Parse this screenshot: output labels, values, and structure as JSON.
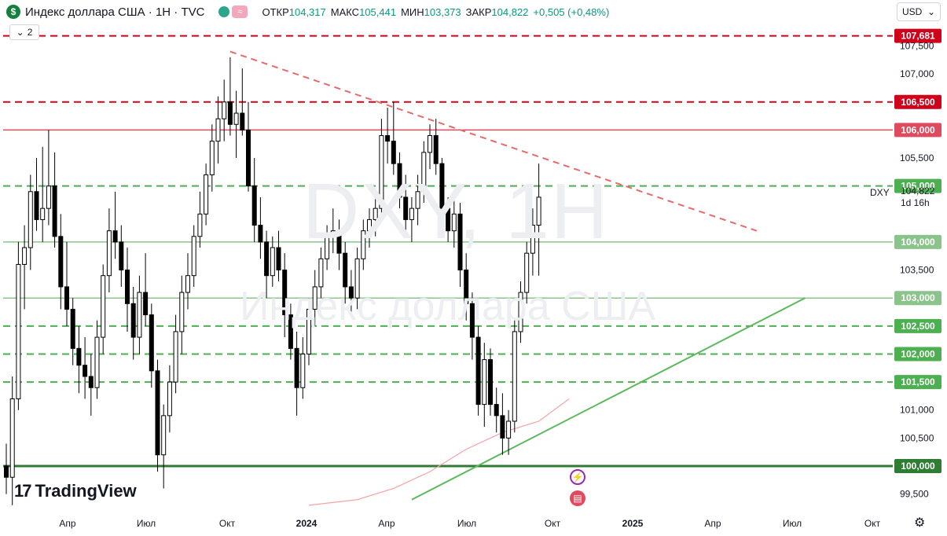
{
  "header": {
    "logo_letter": "$",
    "title": "Индекс доллара США · 1Н · TVC",
    "ohlc": [
      {
        "label": "ОТКР",
        "value": "104,317"
      },
      {
        "label": "МАКС",
        "value": "105,441"
      },
      {
        "label": "МИН",
        "value": "103,373"
      },
      {
        "label": "ЗАКР",
        "value": "104,822"
      }
    ],
    "change": "+0,505 (+0,48%)",
    "indicator_count": "2",
    "currency": "USD"
  },
  "watermark": {
    "symbol": "DXY, 1Н",
    "name": "Индекс доллара США"
  },
  "price_line": {
    "symbol": "DXY",
    "price": "104,822",
    "timer": "1d 16h"
  },
  "brand": {
    "name": "TradingView"
  },
  "colors": {
    "up": "#ffffff",
    "down": "#000000",
    "candle_border": "#000000",
    "red_line": "#e04a5f",
    "red_dashed": "#d0021b",
    "green_line": "#5cb85c",
    "green_label": "#4caf50",
    "dark_green": "#2e7d32",
    "ma_line": "#f5a3a3"
  },
  "icons": [
    "settings-gear-icon",
    "lightning-event-icon",
    "us-flag-event-icon",
    "chevron-down-icon"
  ],
  "chart_data": {
    "type": "candlestick",
    "y_axis": {
      "min": 99.2,
      "max": 107.9,
      "position": "right",
      "ticks": [
        "99,500",
        "100,500",
        "101,000",
        "103,500",
        "105,500",
        "107,000",
        "107,500"
      ]
    },
    "x_axis": {
      "labels": [
        "Апр",
        "Июл",
        "Окт",
        "2024",
        "Апр",
        "Июл",
        "Окт",
        "2025",
        "Апр",
        "Июл",
        "Окт"
      ],
      "bold": [
        "2024",
        "2025"
      ]
    },
    "candles": [
      {
        "o": 100.0,
        "h": 100.4,
        "l": 99.5,
        "c": 99.8
      },
      {
        "o": 99.8,
        "h": 101.6,
        "l": 99.3,
        "c": 101.2
      },
      {
        "o": 101.2,
        "h": 104.0,
        "l": 101.0,
        "c": 103.6
      },
      {
        "o": 103.6,
        "h": 104.3,
        "l": 102.8,
        "c": 103.9
      },
      {
        "o": 103.9,
        "h": 105.2,
        "l": 103.5,
        "c": 104.9
      },
      {
        "o": 104.9,
        "h": 105.5,
        "l": 104.2,
        "c": 104.4
      },
      {
        "o": 104.4,
        "h": 105.7,
        "l": 104.0,
        "c": 104.6
      },
      {
        "o": 104.6,
        "h": 106.0,
        "l": 104.3,
        "c": 105.0
      },
      {
        "o": 105.0,
        "h": 105.6,
        "l": 103.9,
        "c": 104.1
      },
      {
        "o": 104.1,
        "h": 104.5,
        "l": 102.8,
        "c": 103.2
      },
      {
        "o": 103.2,
        "h": 104.0,
        "l": 102.5,
        "c": 102.8
      },
      {
        "o": 102.8,
        "h": 103.0,
        "l": 101.8,
        "c": 102.1
      },
      {
        "o": 102.1,
        "h": 102.5,
        "l": 101.3,
        "c": 101.8
      },
      {
        "o": 101.8,
        "h": 102.3,
        "l": 101.2,
        "c": 101.6
      },
      {
        "o": 101.6,
        "h": 102.0,
        "l": 100.9,
        "c": 101.4
      },
      {
        "o": 101.4,
        "h": 102.6,
        "l": 101.2,
        "c": 102.3
      },
      {
        "o": 102.3,
        "h": 103.6,
        "l": 102.0,
        "c": 103.4
      },
      {
        "o": 103.4,
        "h": 104.6,
        "l": 103.1,
        "c": 104.2
      },
      {
        "o": 104.2,
        "h": 104.9,
        "l": 103.7,
        "c": 104.0
      },
      {
        "o": 104.0,
        "h": 104.3,
        "l": 103.2,
        "c": 103.5
      },
      {
        "o": 103.5,
        "h": 103.9,
        "l": 102.4,
        "c": 102.9
      },
      {
        "o": 102.9,
        "h": 103.2,
        "l": 101.9,
        "c": 102.3
      },
      {
        "o": 102.3,
        "h": 103.4,
        "l": 102.0,
        "c": 103.1
      },
      {
        "o": 103.1,
        "h": 103.8,
        "l": 102.5,
        "c": 102.7
      },
      {
        "o": 102.7,
        "h": 102.9,
        "l": 101.4,
        "c": 101.7
      },
      {
        "o": 101.7,
        "h": 101.9,
        "l": 99.9,
        "c": 100.2
      },
      {
        "o": 100.2,
        "h": 101.1,
        "l": 99.6,
        "c": 100.9
      },
      {
        "o": 100.9,
        "h": 101.8,
        "l": 100.6,
        "c": 101.5
      },
      {
        "o": 101.5,
        "h": 102.7,
        "l": 101.3,
        "c": 102.4
      },
      {
        "o": 102.4,
        "h": 103.4,
        "l": 102.0,
        "c": 103.1
      },
      {
        "o": 103.1,
        "h": 103.8,
        "l": 102.8,
        "c": 103.4
      },
      {
        "o": 103.4,
        "h": 104.3,
        "l": 103.2,
        "c": 104.1
      },
      {
        "o": 104.1,
        "h": 104.9,
        "l": 103.9,
        "c": 104.5
      },
      {
        "o": 104.5,
        "h": 105.4,
        "l": 104.3,
        "c": 105.2
      },
      {
        "o": 105.2,
        "h": 106.1,
        "l": 104.9,
        "c": 105.8
      },
      {
        "o": 105.8,
        "h": 106.6,
        "l": 105.4,
        "c": 106.2
      },
      {
        "o": 106.2,
        "h": 106.9,
        "l": 105.8,
        "c": 106.5
      },
      {
        "o": 106.5,
        "h": 107.3,
        "l": 105.9,
        "c": 106.1
      },
      {
        "o": 106.1,
        "h": 106.7,
        "l": 105.5,
        "c": 106.3
      },
      {
        "o": 106.3,
        "h": 107.1,
        "l": 105.9,
        "c": 106.0
      },
      {
        "o": 106.0,
        "h": 106.5,
        "l": 104.9,
        "c": 105.0
      },
      {
        "o": 105.0,
        "h": 105.5,
        "l": 104.0,
        "c": 104.3
      },
      {
        "o": 104.3,
        "h": 104.8,
        "l": 103.7,
        "c": 104.0
      },
      {
        "o": 104.0,
        "h": 104.2,
        "l": 103.0,
        "c": 103.4
      },
      {
        "o": 103.4,
        "h": 104.1,
        "l": 103.2,
        "c": 103.9
      },
      {
        "o": 103.9,
        "h": 104.2,
        "l": 103.3,
        "c": 103.5
      },
      {
        "o": 103.5,
        "h": 103.8,
        "l": 102.3,
        "c": 102.7
      },
      {
        "o": 102.7,
        "h": 102.9,
        "l": 101.9,
        "c": 102.1
      },
      {
        "o": 102.1,
        "h": 102.4,
        "l": 100.9,
        "c": 101.4
      },
      {
        "o": 101.4,
        "h": 102.3,
        "l": 101.2,
        "c": 102.0
      },
      {
        "o": 102.0,
        "h": 103.0,
        "l": 101.8,
        "c": 102.8
      },
      {
        "o": 102.8,
        "h": 103.5,
        "l": 102.5,
        "c": 103.2
      },
      {
        "o": 103.2,
        "h": 103.9,
        "l": 103.0,
        "c": 103.7
      },
      {
        "o": 103.7,
        "h": 104.3,
        "l": 103.5,
        "c": 104.1
      },
      {
        "o": 104.1,
        "h": 104.6,
        "l": 103.8,
        "c": 104.2
      },
      {
        "o": 104.2,
        "h": 104.4,
        "l": 103.5,
        "c": 103.8
      },
      {
        "o": 103.8,
        "h": 104.0,
        "l": 102.9,
        "c": 103.2
      },
      {
        "o": 103.2,
        "h": 103.5,
        "l": 102.7,
        "c": 103.0
      },
      {
        "o": 103.0,
        "h": 103.9,
        "l": 102.8,
        "c": 103.7
      },
      {
        "o": 103.7,
        "h": 104.4,
        "l": 103.5,
        "c": 104.2
      },
      {
        "o": 104.2,
        "h": 104.6,
        "l": 103.9,
        "c": 104.4
      },
      {
        "o": 104.4,
        "h": 104.8,
        "l": 104.1,
        "c": 104.6
      },
      {
        "o": 104.6,
        "h": 106.2,
        "l": 104.4,
        "c": 105.9
      },
      {
        "o": 105.9,
        "h": 106.4,
        "l": 105.4,
        "c": 105.8
      },
      {
        "o": 105.8,
        "h": 106.5,
        "l": 105.2,
        "c": 105.4
      },
      {
        "o": 105.4,
        "h": 105.6,
        "l": 104.6,
        "c": 104.8
      },
      {
        "o": 104.8,
        "h": 105.2,
        "l": 104.1,
        "c": 104.4
      },
      {
        "o": 104.4,
        "h": 104.8,
        "l": 104.0,
        "c": 104.6
      },
      {
        "o": 104.6,
        "h": 105.2,
        "l": 104.3,
        "c": 104.9
      },
      {
        "o": 104.9,
        "h": 105.8,
        "l": 104.7,
        "c": 105.6
      },
      {
        "o": 105.6,
        "h": 106.1,
        "l": 105.3,
        "c": 105.9
      },
      {
        "o": 105.9,
        "h": 106.2,
        "l": 105.2,
        "c": 105.4
      },
      {
        "o": 105.4,
        "h": 105.5,
        "l": 104.4,
        "c": 104.6
      },
      {
        "o": 104.6,
        "h": 104.8,
        "l": 104.0,
        "c": 104.2
      },
      {
        "o": 104.2,
        "h": 104.8,
        "l": 103.9,
        "c": 104.5
      },
      {
        "o": 104.5,
        "h": 104.7,
        "l": 103.2,
        "c": 103.5
      },
      {
        "o": 103.5,
        "h": 103.8,
        "l": 102.6,
        "c": 102.9
      },
      {
        "o": 102.9,
        "h": 103.1,
        "l": 101.9,
        "c": 102.3
      },
      {
        "o": 102.3,
        "h": 102.5,
        "l": 100.9,
        "c": 101.1
      },
      {
        "o": 101.1,
        "h": 102.2,
        "l": 100.7,
        "c": 101.9
      },
      {
        "o": 101.9,
        "h": 102.1,
        "l": 100.9,
        "c": 101.1
      },
      {
        "o": 101.1,
        "h": 101.4,
        "l": 100.6,
        "c": 100.9
      },
      {
        "o": 100.9,
        "h": 101.3,
        "l": 100.2,
        "c": 100.5
      },
      {
        "o": 100.5,
        "h": 101.0,
        "l": 100.2,
        "c": 100.8
      },
      {
        "o": 100.8,
        "h": 102.6,
        "l": 100.6,
        "c": 102.4
      },
      {
        "o": 102.4,
        "h": 103.3,
        "l": 102.2,
        "c": 103.1
      },
      {
        "o": 103.1,
        "h": 104.0,
        "l": 102.9,
        "c": 103.8
      },
      {
        "o": 103.8,
        "h": 104.6,
        "l": 103.4,
        "c": 104.3
      },
      {
        "o": 104.3,
        "h": 105.4,
        "l": 103.4,
        "c": 104.8
      }
    ],
    "horizontal_levels": [
      {
        "value": 107.681,
        "label": "107,681",
        "style": "dashed",
        "color": "#d0021b"
      },
      {
        "value": 106.5,
        "label": "106,500",
        "style": "dashed",
        "color": "#d0021b"
      },
      {
        "value": 106.0,
        "label": "106,000",
        "style": "solid",
        "color": "#e04a5f"
      },
      {
        "value": 105.0,
        "label": "105,000",
        "style": "dashed",
        "color": "#4caf50"
      },
      {
        "value": 104.0,
        "label": "104,000",
        "style": "solid",
        "color": "#8bc48b"
      },
      {
        "value": 103.0,
        "label": "103,000",
        "style": "solid",
        "color": "#8bc48b"
      },
      {
        "value": 102.5,
        "label": "102,500",
        "style": "dashed",
        "color": "#4caf50"
      },
      {
        "value": 102.0,
        "label": "102,000",
        "style": "dashed",
        "color": "#4caf50"
      },
      {
        "value": 101.5,
        "label": "101,500",
        "style": "dashed",
        "color": "#4caf50"
      },
      {
        "value": 100.0,
        "label": "100,000",
        "style": "solid-thick",
        "color": "#2e7d32"
      }
    ],
    "trend_lines": [
      {
        "name": "descending-resistance",
        "style": "dashed",
        "color": "#e56b6b",
        "from": {
          "index": 37,
          "value": 107.4
        },
        "to": {
          "index": 124,
          "value": 104.2
        }
      },
      {
        "name": "ascending-support",
        "style": "solid",
        "color": "#5cb85c",
        "from": {
          "index": 67,
          "value": 99.4
        },
        "to": {
          "index": 132,
          "value": 103.0
        }
      }
    ],
    "moving_average": [
      {
        "index": 50,
        "value": 99.3
      },
      {
        "index": 58,
        "value": 99.4
      },
      {
        "index": 64,
        "value": 99.6
      },
      {
        "index": 70,
        "value": 99.9
      },
      {
        "index": 76,
        "value": 100.3
      },
      {
        "index": 82,
        "value": 100.6
      },
      {
        "index": 88,
        "value": 100.8
      },
      {
        "index": 93,
        "value": 101.2
      }
    ]
  }
}
